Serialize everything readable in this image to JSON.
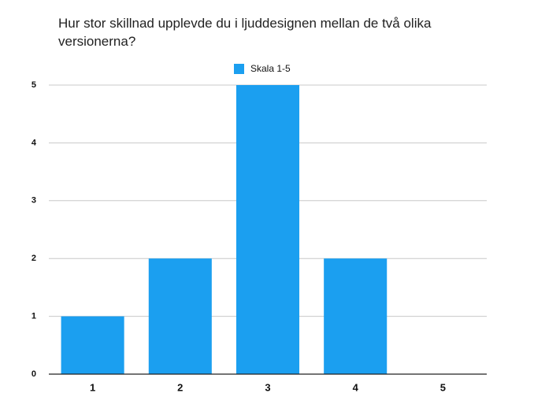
{
  "chart_data": {
    "type": "bar",
    "title": "Hur stor skillnad upplevde du i ljuddesignen mellan de två olika versionerna?",
    "categories": [
      "1",
      "2",
      "3",
      "4",
      "5"
    ],
    "series": [
      {
        "name": "Skala 1-5",
        "color": "#1b9ff0",
        "values": [
          1,
          2,
          5,
          2,
          0
        ]
      }
    ],
    "ylim": [
      0,
      5
    ],
    "yticks": [
      0,
      1,
      2,
      3,
      4,
      5
    ],
    "grid": true,
    "legend": "top"
  }
}
